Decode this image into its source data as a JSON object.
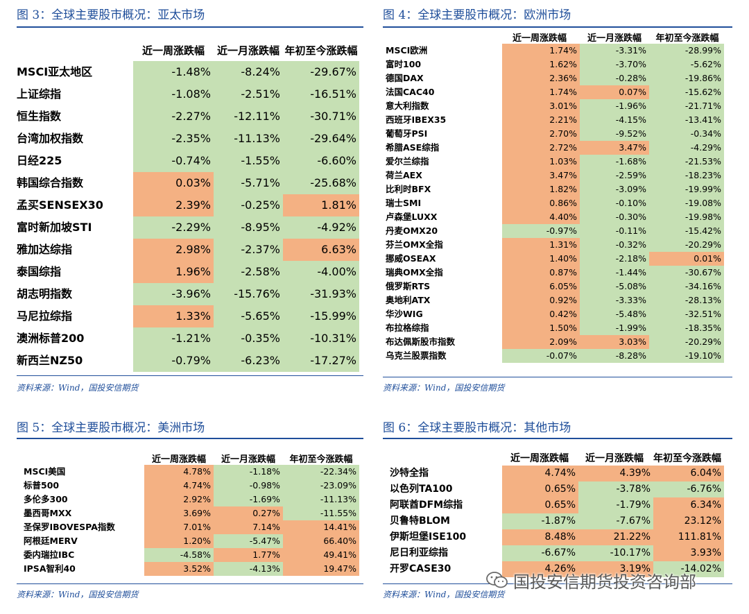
{
  "colors": {
    "title": "#1f4e9a",
    "positive": "#f4b183",
    "negative": "#c6e0b4"
  },
  "headers": [
    "近一周涨跌幅",
    "近一月涨跌幅",
    "年初至今涨跌幅"
  ],
  "source": "资料来源：Wind，国投安信期货",
  "watermark": "国投安信期货投资咨询部",
  "watermark_icon": "wechat-icon",
  "panels": [
    {
      "title": "图 3：全球主要股市概况：亚太市场",
      "rows": [
        {
          "name": "MSCI亚太地区",
          "week": "-1.48%",
          "month": "-8.24%",
          "ytd": "-29.67%"
        },
        {
          "name": "上证综指",
          "week": "-1.08%",
          "month": "-2.51%",
          "ytd": "-16.51%"
        },
        {
          "name": "恒生指数",
          "week": "-2.27%",
          "month": "-12.11%",
          "ytd": "-30.71%"
        },
        {
          "name": "台湾加权指数",
          "week": "-2.35%",
          "month": "-11.13%",
          "ytd": "-29.64%"
        },
        {
          "name": "日经225",
          "week": "-0.74%",
          "month": "-1.55%",
          "ytd": "-6.60%"
        },
        {
          "name": "韩国综合指数",
          "week": "0.03%",
          "month": "-5.71%",
          "ytd": "-25.68%"
        },
        {
          "name": "孟买SENSEX30",
          "week": "2.39%",
          "month": "-0.25%",
          "ytd": "1.81%"
        },
        {
          "name": "富时新加坡STI",
          "week": "-2.29%",
          "month": "-8.95%",
          "ytd": "-4.92%"
        },
        {
          "name": "雅加达综指",
          "week": "2.98%",
          "month": "-2.37%",
          "ytd": "6.63%"
        },
        {
          "name": "泰国综指",
          "week": "1.96%",
          "month": "-2.58%",
          "ytd": "-4.00%"
        },
        {
          "name": "胡志明指数",
          "week": "-3.96%",
          "month": "-15.76%",
          "ytd": "-31.93%"
        },
        {
          "name": "马尼拉综指",
          "week": "1.33%",
          "month": "-5.65%",
          "ytd": "-15.99%"
        },
        {
          "name": "澳洲标普200",
          "week": "-1.21%",
          "month": "-0.35%",
          "ytd": "-10.31%"
        },
        {
          "name": "新西兰NZ50",
          "week": "-0.79%",
          "month": "-6.23%",
          "ytd": "-17.27%"
        }
      ]
    },
    {
      "title": "图 4：全球主要股市概况：欧洲市场",
      "rows": [
        {
          "name": "MSCI欧洲",
          "week": "1.74%",
          "month": "-3.31%",
          "ytd": "-28.99%"
        },
        {
          "name": "富时100",
          "week": "1.62%",
          "month": "-3.70%",
          "ytd": "-5.62%"
        },
        {
          "name": "德国DAX",
          "week": "2.36%",
          "month": "-0.28%",
          "ytd": "-19.86%"
        },
        {
          "name": "法国CAC40",
          "week": "1.74%",
          "month": "0.07%",
          "ytd": "-15.62%"
        },
        {
          "name": "意大利指数",
          "week": "3.01%",
          "month": "-1.96%",
          "ytd": "-21.71%"
        },
        {
          "name": "西班牙IBEX35",
          "week": "2.21%",
          "month": "-4.15%",
          "ytd": "-13.41%"
        },
        {
          "name": "葡萄牙PSI",
          "week": "2.70%",
          "month": "-9.52%",
          "ytd": "-0.34%"
        },
        {
          "name": "希腊ASE综指",
          "week": "2.72%",
          "month": "3.47%",
          "ytd": "-4.29%"
        },
        {
          "name": "爱尔兰综指",
          "week": "1.03%",
          "month": "-1.68%",
          "ytd": "-21.53%"
        },
        {
          "name": "荷兰AEX",
          "week": "3.47%",
          "month": "-2.59%",
          "ytd": "-18.23%"
        },
        {
          "name": "比利时BFX",
          "week": "1.82%",
          "month": "-3.09%",
          "ytd": "-19.99%"
        },
        {
          "name": "瑞士SMI",
          "week": "0.86%",
          "month": "-0.10%",
          "ytd": "-19.08%"
        },
        {
          "name": "卢森堡LUXX",
          "week": "4.40%",
          "month": "-0.30%",
          "ytd": "-19.98%"
        },
        {
          "name": "丹麦OMX20",
          "week": "-0.97%",
          "month": "-0.11%",
          "ytd": "-15.42%"
        },
        {
          "name": "芬兰OMX全指",
          "week": "1.31%",
          "month": "-0.32%",
          "ytd": "-20.29%"
        },
        {
          "name": "挪威OSEAX",
          "week": "1.40%",
          "month": "-2.18%",
          "ytd": "0.01%"
        },
        {
          "name": "瑞典OMX全指",
          "week": "0.87%",
          "month": "-1.44%",
          "ytd": "-30.67%"
        },
        {
          "name": "俄罗斯RTS",
          "week": "6.05%",
          "month": "-5.08%",
          "ytd": "-34.16%"
        },
        {
          "name": "奥地利ATX",
          "week": "0.92%",
          "month": "-3.33%",
          "ytd": "-28.13%"
        },
        {
          "name": "华沙WIG",
          "week": "0.42%",
          "month": "-5.48%",
          "ytd": "-32.51%"
        },
        {
          "name": "布拉格综指",
          "week": "1.50%",
          "month": "-1.99%",
          "ytd": "-18.35%"
        },
        {
          "name": "布达佩斯股市指数",
          "week": "2.09%",
          "month": "3.03%",
          "ytd": "-20.29%"
        },
        {
          "name": "乌克兰股票指数",
          "week": "-0.07%",
          "month": "-8.28%",
          "ytd": "-19.10%"
        }
      ]
    },
    {
      "title": "图 5：全球主要股市概况：美洲市场",
      "rows": [
        {
          "name": "MSCI美国",
          "week": "4.78%",
          "month": "-1.18%",
          "ytd": "-22.34%"
        },
        {
          "name": "标普500",
          "week": "4.74%",
          "month": "-0.98%",
          "ytd": "-23.09%"
        },
        {
          "name": "多伦多300",
          "week": "2.92%",
          "month": "-1.69%",
          "ytd": "-11.13%"
        },
        {
          "name": "墨西哥MXX",
          "week": "3.69%",
          "month": "0.27%",
          "ytd": "-11.55%"
        },
        {
          "name": "圣保罗IBOVESPA指数",
          "week": "7.01%",
          "month": "7.14%",
          "ytd": "14.41%"
        },
        {
          "name": "阿根廷MERV",
          "week": "1.20%",
          "month": "-5.47%",
          "ytd": "66.40%"
        },
        {
          "name": "委内瑞拉IBC",
          "week": "-4.58%",
          "month": "1.77%",
          "ytd": "49.41%"
        },
        {
          "name": "IPSA智利40",
          "week": "3.52%",
          "month": "-4.13%",
          "ytd": "19.47%"
        }
      ]
    },
    {
      "title": "图 6：全球主要股市概况：其他市场",
      "rows": [
        {
          "name": "沙特全指",
          "week": "4.74%",
          "month": "4.39%",
          "ytd": "6.04%"
        },
        {
          "name": "以色列TA100",
          "week": "0.65%",
          "month": "-3.78%",
          "ytd": "-6.76%"
        },
        {
          "name": "阿联酋DFM综指",
          "week": "0.65%",
          "month": "-1.79%",
          "ytd": "6.34%"
        },
        {
          "name": "贝鲁特BLOM",
          "week": "-1.87%",
          "month": "-7.67%",
          "ytd": "23.12%"
        },
        {
          "name": "伊斯坦堡ISE100",
          "week": "8.48%",
          "month": "21.22%",
          "ytd": "111.81%"
        },
        {
          "name": "尼日利亚综指",
          "week": "-6.67%",
          "month": "-10.17%",
          "ytd": "3.93%"
        },
        {
          "name": "开罗CASE30",
          "week": "4.26%",
          "month": "3.19%",
          "ytd": "-14.02%"
        }
      ]
    }
  ]
}
